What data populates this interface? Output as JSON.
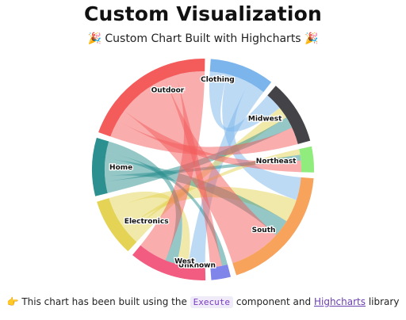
{
  "title": "Custom Visualization",
  "subtitle": {
    "emoji": "🎉",
    "text": "Custom Chart Built with Highcharts"
  },
  "caption": {
    "pointer_emoji": "👉",
    "before": "This chart has been built using the",
    "code": "Execute",
    "middle": "component and",
    "link": "Highcharts",
    "after": "library"
  },
  "chart_data": {
    "type": "dependencywheel",
    "nodes": [
      {
        "name": "Clothing",
        "color": "#7cb5ec"
      },
      {
        "name": "Midwest",
        "color": "#434348"
      },
      {
        "name": "Northeast",
        "color": "#90ed7d"
      },
      {
        "name": "South",
        "color": "#f7a35c"
      },
      {
        "name": "Unknown",
        "color": "#8085e9"
      },
      {
        "name": "West",
        "color": "#f15c80"
      },
      {
        "name": "Electronics",
        "color": "#e4d354"
      },
      {
        "name": "Home",
        "color": "#2b908f"
      },
      {
        "name": "Outdoor",
        "color": "#f45b5b"
      }
    ],
    "links": [
      {
        "from": "Clothing",
        "to": "Midwest",
        "weight": 3
      },
      {
        "from": "Clothing",
        "to": "South",
        "weight": 4
      },
      {
        "from": "Clothing",
        "to": "West",
        "weight": 3
      },
      {
        "from": "Electronics",
        "to": "Midwest",
        "weight": 2
      },
      {
        "from": "Electronics",
        "to": "Northeast",
        "weight": 1
      },
      {
        "from": "Electronics",
        "to": "South",
        "weight": 4
      },
      {
        "from": "Electronics",
        "to": "West",
        "weight": 2
      },
      {
        "from": "Home",
        "to": "Midwest",
        "weight": 2
      },
      {
        "from": "Home",
        "to": "Northeast",
        "weight": 1
      },
      {
        "from": "Home",
        "to": "South",
        "weight": 3
      },
      {
        "from": "Home",
        "to": "Unknown",
        "weight": 1
      },
      {
        "from": "Home",
        "to": "West",
        "weight": 2
      },
      {
        "from": "Outdoor",
        "to": "Midwest",
        "weight": 3
      },
      {
        "from": "Outdoor",
        "to": "Northeast",
        "weight": 2
      },
      {
        "from": "Outdoor",
        "to": "South",
        "weight": 9
      },
      {
        "from": "Outdoor",
        "to": "Unknown",
        "weight": 2
      },
      {
        "from": "Outdoor",
        "to": "West",
        "weight": 5
      }
    ]
  }
}
